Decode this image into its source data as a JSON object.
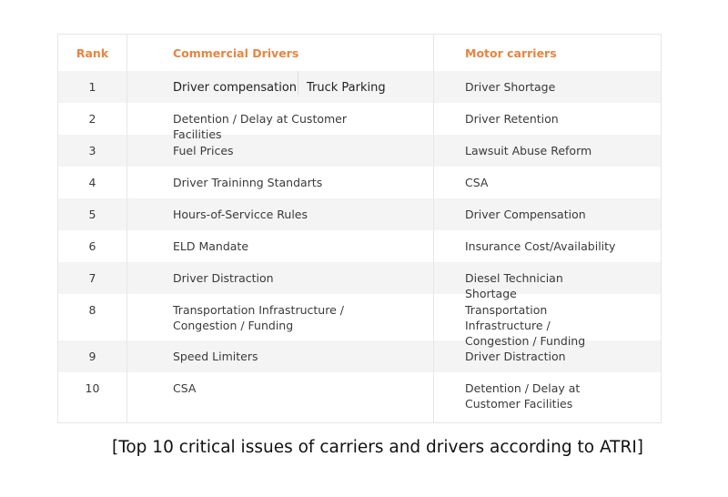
{
  "table": {
    "headers": [
      "Rank",
      "Commercial Drivers",
      "Motor carriers"
    ],
    "rows": [
      {
        "rank": "1",
        "drivers": [
          "Driver compensation",
          "Truck Parking"
        ],
        "carriers": "Driver Shortage"
      },
      {
        "rank": "2",
        "drivers": "Detention / Delay at Customer Facilities",
        "carriers": "Driver Retention"
      },
      {
        "rank": "3",
        "drivers": "Fuel Prices",
        "carriers": "Lawsuit Abuse Reform"
      },
      {
        "rank": "4",
        "drivers": "Driver Traininng Standarts",
        "carriers": "CSA"
      },
      {
        "rank": "5",
        "drivers": "Hours-of-Servicce Rules",
        "carriers": "Driver Compensation"
      },
      {
        "rank": "6",
        "drivers": "ELD Mandate",
        "carriers": "Insurance Cost/Availability"
      },
      {
        "rank": "7",
        "drivers": "Driver Distraction",
        "carriers": "Diesel Technician Shortage"
      },
      {
        "rank": "8",
        "drivers": "Transportation Infrastructure / Congestion / Funding",
        "carriers": "Transportation Infrastructure / Congestion / Funding"
      },
      {
        "rank": "9",
        "drivers": "Speed Limiters",
        "carriers": "Driver Distraction"
      },
      {
        "rank": "10",
        "drivers": "CSA",
        "carriers": "Detention / Delay at Customer Facilities"
      }
    ]
  },
  "caption": "[Top 10 critical issues of carriers and drivers according to ATRI]",
  "colors": {
    "header": "#e8843f",
    "stripe": "#f4f4f4"
  }
}
